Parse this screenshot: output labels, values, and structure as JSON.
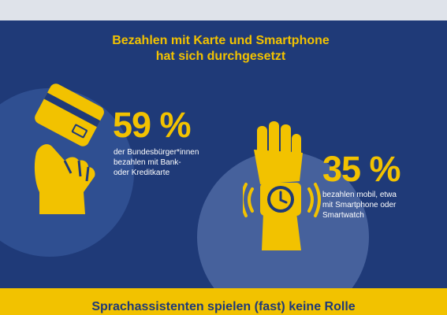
{
  "headline": {
    "line1": "Bezahlen mit Karte und Smartphone",
    "line2": "hat sich durchgesetzt"
  },
  "stats": [
    {
      "value": "59 %",
      "lines": [
        "der Bundesbürger*innen",
        "bezahlen mit Bank-",
        "oder Kreditkarte"
      ],
      "icon": "hand-card-icon"
    },
    {
      "value": "35 %",
      "lines": [
        "bezahlen mobil, etwa",
        "mit Smartphone oder",
        "Smartwatch"
      ],
      "icon": "smartwatch-hand-icon"
    }
  ],
  "bottom": {
    "title": "Sprachassistenten spielen (fast) keine Rolle"
  },
  "colors": {
    "background": "#1f3a78",
    "accent": "#f2c200",
    "text": "#ffffff",
    "circle": "#2f4f91",
    "top_band": "#dfe3ea"
  }
}
